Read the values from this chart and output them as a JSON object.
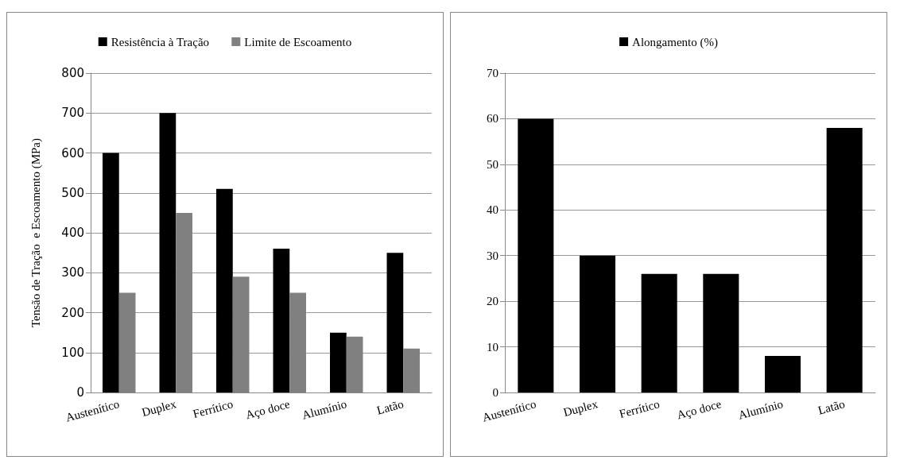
{
  "chart_data": [
    {
      "type": "bar",
      "ylabel": "Tensão de Tração  e Escoamento (MPa)",
      "categories": [
        "Austenítico",
        "Duplex",
        "Ferrítico",
        "Aço doce",
        "Alumínio",
        "Latão"
      ],
      "series": [
        {
          "name": "Resistência à Tração",
          "color": "#000000",
          "values": [
            600,
            700,
            510,
            360,
            150,
            350
          ]
        },
        {
          "name": "Limite de Escoamento",
          "color": "#808080",
          "values": [
            250,
            450,
            290,
            250,
            140,
            110
          ]
        }
      ],
      "ylim": [
        0,
        800
      ],
      "yticks": [
        0,
        100,
        200,
        300,
        400,
        500,
        600,
        700,
        800
      ],
      "grid": "y",
      "legend": "top"
    },
    {
      "type": "bar",
      "categories": [
        "Austenítico",
        "Duplex",
        "Ferrítico",
        "Aço doce",
        "Alumínio",
        "Latão"
      ],
      "series": [
        {
          "name": "Alongamento (%)",
          "color": "#000000",
          "values": [
            60,
            30,
            26,
            26,
            8,
            58
          ]
        }
      ],
      "ylim": [
        0,
        70
      ],
      "yticks": [
        0,
        10,
        20,
        30,
        40,
        50,
        60,
        70
      ],
      "grid": "y",
      "legend": "top"
    }
  ]
}
